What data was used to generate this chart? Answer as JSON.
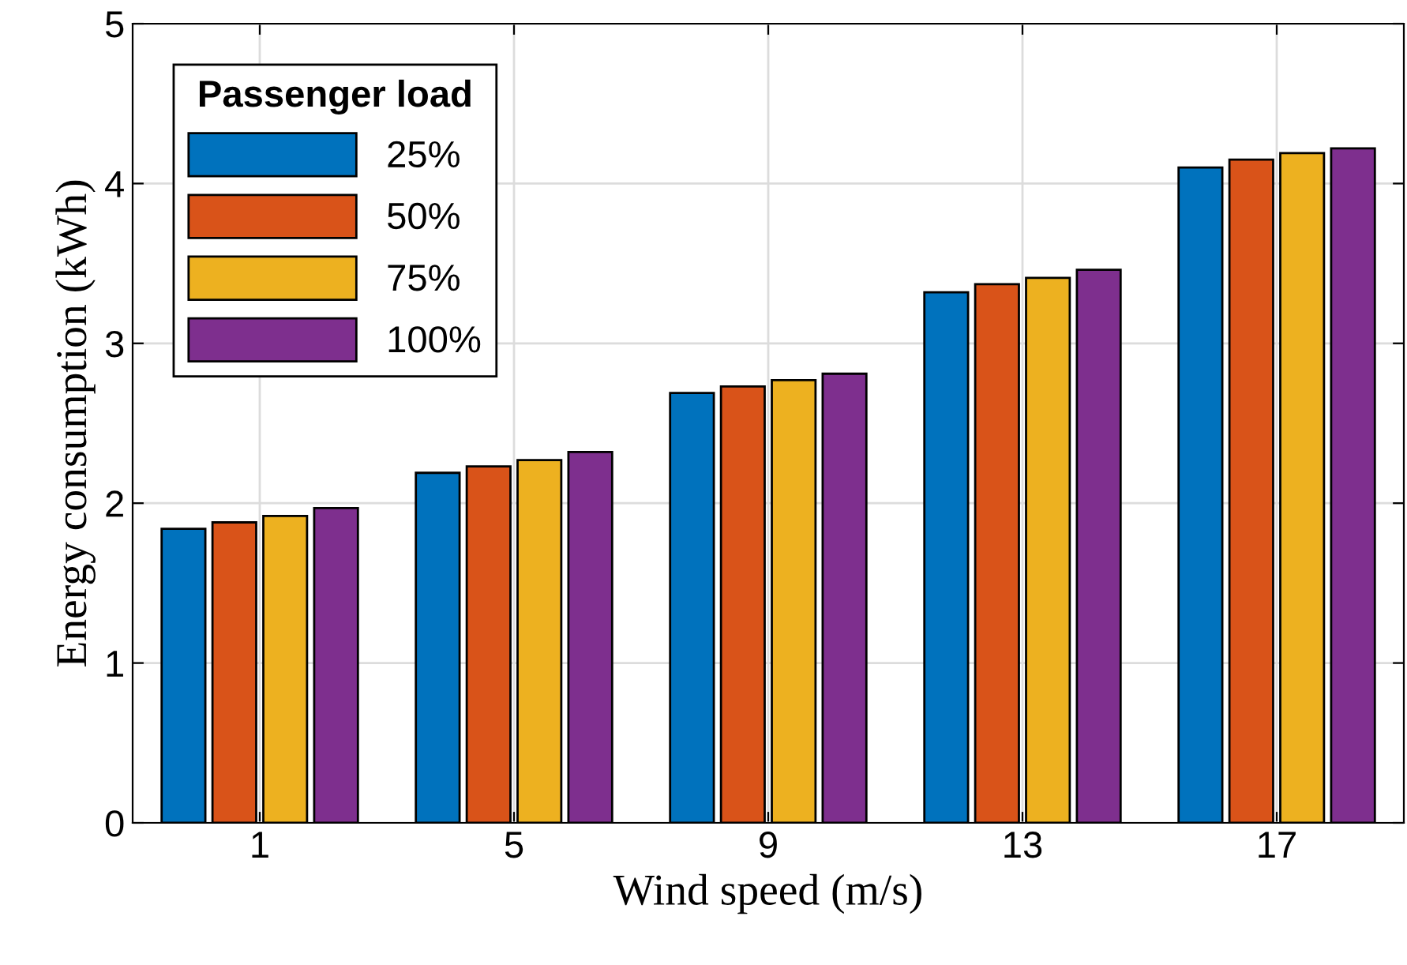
{
  "chart_data": {
    "type": "bar",
    "xlabel": "Wind speed (m/s)",
    "ylabel": "Energy consumption (kWh)",
    "legend_title": "Passenger load",
    "categories": [
      "1",
      "5",
      "9",
      "13",
      "17"
    ],
    "series": [
      {
        "name": "25%",
        "color": "#0072bd",
        "values": [
          1.84,
          2.19,
          2.69,
          3.32,
          4.1
        ]
      },
      {
        "name": "50%",
        "color": "#d95319",
        "values": [
          1.88,
          2.23,
          2.73,
          3.37,
          4.15
        ]
      },
      {
        "name": "75%",
        "color": "#edb120",
        "values": [
          1.92,
          2.27,
          2.77,
          3.41,
          4.19
        ]
      },
      {
        "name": "100%",
        "color": "#7e2f8e",
        "values": [
          1.97,
          2.32,
          2.81,
          3.46,
          4.22
        ]
      }
    ],
    "ylim": [
      0,
      5
    ],
    "yticks": [
      0,
      1,
      2,
      3,
      4,
      5
    ],
    "grid": true,
    "legend": "top left"
  }
}
